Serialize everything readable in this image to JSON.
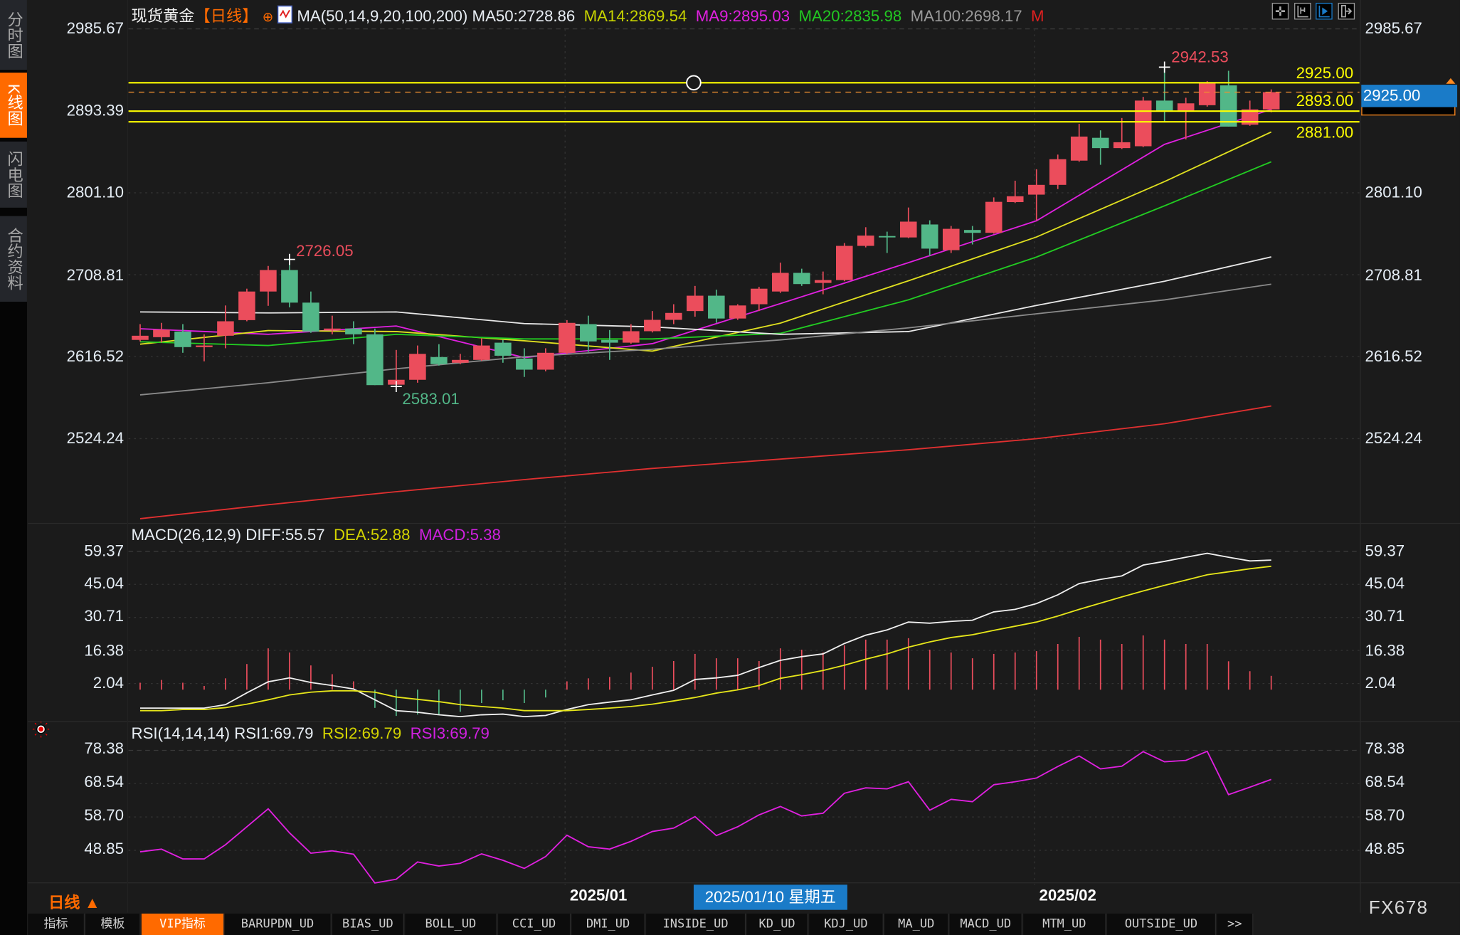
{
  "sidebar": {
    "tabs": [
      {
        "label": "分时图",
        "active": false
      },
      {
        "label": "K线图",
        "active": true
      },
      {
        "label": "闪电图",
        "active": false
      },
      {
        "label": "合约资料",
        "active": false
      }
    ]
  },
  "header": {
    "instrument": "现货黄金",
    "period": "【日线】",
    "ma_params": "MA(50,14,9,20,100,200)",
    "ma_values": [
      {
        "label": "MA50:2728.86",
        "color": "#e8eef4"
      },
      {
        "label": "MA14:2869.54",
        "color": "#c8d400"
      },
      {
        "label": "MA9:2895.03",
        "color": "#e020e0"
      },
      {
        "label": "MA20:2835.98",
        "color": "#22c822"
      },
      {
        "label": "MA100:2698.17",
        "color": "#9a9a9a"
      },
      {
        "label": "M",
        "color": "#e02020"
      }
    ],
    "toolbar_icons": [
      "crosshair-icon",
      "range-icon",
      "scroll-right-icon",
      "expand-right-icon"
    ]
  },
  "price_axis": {
    "ticks": [
      "2985.67",
      "2893.39",
      "2801.10",
      "2708.81",
      "2616.52",
      "2524.24"
    ]
  },
  "price_lines": [
    {
      "label": "2925.00",
      "value": 2925.0
    },
    {
      "label": "2893.00",
      "value": 2893.0
    },
    {
      "label": "2881.00",
      "value": 2881.0
    }
  ],
  "current_price": {
    "label": "2925.00"
  },
  "annotations": {
    "high": "2942.53",
    "mid_high": "2726.05",
    "low": "2583.01"
  },
  "macd": {
    "title": "MACD(26,12,9)",
    "diff": "DIFF:55.57",
    "dea": "DEA:52.88",
    "macd": "MACD:5.38",
    "ticks": [
      "59.37",
      "45.04",
      "30.71",
      "16.38",
      "2.04"
    ]
  },
  "rsi": {
    "title": "RSI(14,14,14)",
    "rsi1": "RSI1:69.79",
    "rsi2": "RSI2:69.79",
    "rsi3": "RSI3:69.79",
    "ticks": [
      "78.38",
      "68.54",
      "58.70",
      "48.85"
    ]
  },
  "x_axis": {
    "labels": [
      "2025/01",
      "2025/02"
    ],
    "crosshair_date": "2025/01/10 星期五"
  },
  "footer": {
    "period": "日线",
    "period_arrow": "▲",
    "brand": "FX678"
  },
  "indicator_bar": [
    "指标",
    "模板",
    "VIP指标",
    "BARUPDN_UD",
    "BIAS_UD",
    "BOLL_UD",
    "CCI_UD",
    "DMI_UD",
    "INSIDE_UD",
    "KD_UD",
    "KDJ_UD",
    "MA_UD",
    "MACD_UD",
    "MTM_UD",
    "OUTSIDE_UD",
    ">>"
  ],
  "colors": {
    "up": "#eb4d5c",
    "down": "#52b788",
    "accent": "#ff6a00",
    "highlight": "#1a7bc8",
    "price_line": "#ffff00"
  },
  "chart_data": [
    {
      "type": "candlestick",
      "title": "现货黄金 日线",
      "ylim": [
        2430,
        2985.67
      ],
      "x_tick_labels": [
        {
          "index": 20,
          "label": "2025/01"
        },
        {
          "index": 42,
          "label": "2025/02"
        }
      ],
      "candles": [
        [
          2635.4,
          2653.2,
          2633.7,
          2640.1
        ],
        [
          2638.5,
          2654.6,
          2632.3,
          2646.9
        ],
        [
          2644.8,
          2653.2,
          2620.9,
          2627.3
        ],
        [
          2627.3,
          2641.7,
          2611.3,
          2629.1
        ],
        [
          2640.1,
          2674.2,
          2626.0,
          2656.4
        ],
        [
          2657.7,
          2693.1,
          2656.4,
          2689.9
        ],
        [
          2689.9,
          2718.7,
          2673.8,
          2714.1
        ],
        [
          2714.1,
          2726.05,
          2672.1,
          2677.4
        ],
        [
          2677.4,
          2689.9,
          2643.4,
          2644.8
        ],
        [
          2646.5,
          2662.7,
          2641.7,
          2648.2
        ],
        [
          2648.2,
          2656.4,
          2630.6,
          2641.7
        ],
        [
          2641.7,
          2648.2,
          2584.5,
          2584.5
        ],
        [
          2585.0,
          2624.1,
          2583.01,
          2590.5
        ],
        [
          2590.5,
          2629.1,
          2587.2,
          2619.7
        ],
        [
          2616.1,
          2630.6,
          2606.5,
          2608.1
        ],
        [
          2609.7,
          2619.7,
          2608.1,
          2612.9
        ],
        [
          2612.9,
          2637.0,
          2612.0,
          2629.1
        ],
        [
          2632.3,
          2635.4,
          2609.7,
          2617.6
        ],
        [
          2614.4,
          2626.0,
          2593.7,
          2601.9
        ],
        [
          2601.9,
          2626.0,
          2600.1,
          2620.9
        ],
        [
          2620.9,
          2657.7,
          2619.5,
          2654.6
        ],
        [
          2653.2,
          2662.7,
          2621.8,
          2633.7
        ],
        [
          2635.4,
          2646.5,
          2612.9,
          2632.3
        ],
        [
          2632.3,
          2653.2,
          2631.2,
          2645.2
        ],
        [
          2645.2,
          2667.9,
          2643.8,
          2658.0
        ],
        [
          2658.0,
          2675.6,
          2653.2,
          2665.8
        ],
        [
          2667.9,
          2696.2,
          2661.6,
          2685.2
        ],
        [
          2685.2,
          2692.0,
          2654.7,
          2659.5
        ],
        [
          2659.5,
          2675.6,
          2658.0,
          2674.2
        ],
        [
          2675.6,
          2695.2,
          2667.9,
          2693.1
        ],
        [
          2689.9,
          2722.4,
          2688.3,
          2710.9
        ],
        [
          2710.9,
          2715.6,
          2696.2,
          2698.3
        ],
        [
          2699.6,
          2712.4,
          2686.8,
          2702.8
        ],
        [
          2702.8,
          2744.5,
          2701.5,
          2741.3
        ],
        [
          2741.3,
          2762.3,
          2739.6,
          2752.9
        ],
        [
          2752.4,
          2757.3,
          2733.3,
          2751.4
        ],
        [
          2750.8,
          2784.5,
          2750.0,
          2768.6
        ],
        [
          2765.4,
          2770.1,
          2730.1,
          2738.2
        ],
        [
          2736.5,
          2763.7,
          2733.3,
          2760.5
        ],
        [
          2759.2,
          2763.7,
          2742.9,
          2756.0
        ],
        [
          2756.0,
          2795.9,
          2755.0,
          2790.9
        ],
        [
          2790.6,
          2814.7,
          2789.6,
          2797.2
        ],
        [
          2799.0,
          2827.6,
          2770.0,
          2810.0
        ],
        [
          2810.0,
          2844.1,
          2805.3,
          2838.9
        ],
        [
          2837.3,
          2878.7,
          2836.0,
          2864.4
        ],
        [
          2863.0,
          2871.4,
          2832.6,
          2851.4
        ],
        [
          2851.4,
          2885.3,
          2850.4,
          2858.0
        ],
        [
          2853.5,
          2909.1,
          2852.5,
          2904.9
        ],
        [
          2904.9,
          2942.53,
          2880.8,
          2893.4
        ],
        [
          2893.4,
          2908.1,
          2861.3,
          2901.8
        ],
        [
          2899.7,
          2926.9,
          2898.1,
          2925.4
        ],
        [
          2922.1,
          2938.5,
          2875.6,
          2875.6
        ],
        [
          2877.7,
          2904.9,
          2876.5,
          2895.0
        ],
        [
          2895.0,
          2917.5,
          2891.7,
          2914.4
        ]
      ],
      "candle_fields": [
        "open",
        "high",
        "low",
        "close"
      ],
      "ma_sample_indices": [
        0,
        6,
        12,
        18,
        24,
        30,
        36,
        42,
        48,
        53
      ],
      "series": [
        {
          "name": "MA9",
          "color": "#e020e0",
          "values": [
            2648.0,
            2641.7,
            2651.1,
            2615.5,
            2631.2,
            2676.3,
            2722.4,
            2769.6,
            2855.6,
            2895.03
          ]
        },
        {
          "name": "MA14",
          "color": "#e0e020",
          "values": [
            2630.6,
            2645.9,
            2644.8,
            2634.4,
            2622.8,
            2654.3,
            2702.0,
            2751.3,
            2813.7,
            2869.54
          ]
        },
        {
          "name": "MA20",
          "color": "#22cc22",
          "values": [
            2633.3,
            2629.1,
            2641.7,
            2636.5,
            2636.5,
            2642.8,
            2680.5,
            2728.7,
            2786.4,
            2835.98
          ]
        },
        {
          "name": "MA50",
          "color": "#e8e8e8",
          "values": [
            2666.9,
            2665.8,
            2666.9,
            2653.8,
            2650.1,
            2641.7,
            2644.8,
            2674.2,
            2701.5,
            2728.86
          ]
        },
        {
          "name": "MA100",
          "color": "#8a8a8a",
          "values": [
            2573.5,
            2587.2,
            2602.9,
            2616.5,
            2624.9,
            2635.4,
            2649.0,
            2664.8,
            2680.5,
            2698.17
          ]
        },
        {
          "name": "MA200",
          "color": "#e03030",
          "values": [
            2434.1,
            2449.8,
            2464.5,
            2478.1,
            2490.7,
            2501.2,
            2511.7,
            2524.2,
            2541.0,
            2561.0
          ]
        }
      ]
    },
    {
      "type": "bar+line",
      "title": "MACD(26,12,9)",
      "ylim": [
        -14.4,
        59.37
      ],
      "histogram": [
        2.4,
        3.6,
        2.4,
        1.0,
        4.3,
        10.5,
        17.3,
        15.5,
        9.9,
        6.1,
        3.0,
        -8.5,
        -12.0,
        -11.4,
        -11.4,
        -10.2,
        -6.4,
        -5.2,
        -6.4,
        -4.0,
        3.0,
        4.3,
        4.9,
        6.8,
        9.3,
        11.8,
        14.9,
        13.0,
        13.0,
        11.8,
        17.3,
        16.7,
        15.5,
        18.6,
        21.1,
        21.1,
        21.7,
        16.7,
        15.5,
        13.0,
        14.9,
        15.5,
        16.1,
        19.2,
        22.3,
        21.1,
        19.2,
        22.9,
        21.1,
        19.2,
        19.2,
        11.7,
        7.4,
        5.38
      ],
      "series": [
        {
          "name": "DIFF",
          "color": "#f0f0f0",
          "values": [
            -8.6,
            -8.6,
            -8.6,
            -8.6,
            -7.1,
            -2.0,
            2.8,
            4.5,
            2.5,
            1.2,
            -0.3,
            -5.0,
            -9.7,
            -10.4,
            -11.5,
            -12.3,
            -11.5,
            -11.2,
            -12.3,
            -11.8,
            -9.2,
            -7.1,
            -6.0,
            -5.0,
            -2.9,
            -0.9,
            3.8,
            4.5,
            5.6,
            9.0,
            12.1,
            13.7,
            14.9,
            19.4,
            23.0,
            25.3,
            28.7,
            28.2,
            29.0,
            29.5,
            33.1,
            34.2,
            36.7,
            40.5,
            45.4,
            47.2,
            48.7,
            53.4,
            55.0,
            56.8,
            58.5,
            56.8,
            55.2,
            55.57
          ]
        },
        {
          "name": "DEA",
          "color": "#e6e61a",
          "values": [
            -9.7,
            -9.7,
            -9.2,
            -9.2,
            -8.4,
            -6.9,
            -5.0,
            -2.9,
            -1.7,
            -1.1,
            -1.1,
            -1.7,
            -3.8,
            -4.8,
            -5.8,
            -7.1,
            -7.9,
            -8.6,
            -9.7,
            -9.7,
            -9.7,
            -9.2,
            -8.6,
            -7.9,
            -6.9,
            -5.5,
            -4.0,
            -2.1,
            -0.7,
            1.2,
            4.3,
            5.9,
            7.7,
            10.0,
            12.6,
            14.9,
            17.8,
            20.1,
            22.0,
            23.2,
            25.1,
            26.9,
            28.7,
            31.3,
            34.2,
            36.9,
            39.6,
            42.2,
            44.6,
            46.9,
            49.2,
            50.5,
            51.8,
            52.88
          ]
        }
      ]
    },
    {
      "type": "line",
      "title": "RSI(14,14,14)",
      "ylim": [
        40,
        82
      ],
      "series": [
        {
          "name": "RSI",
          "color": "#e020e0",
          "values": [
            48.4,
            49.2,
            46.3,
            46.3,
            50.5,
            55.8,
            61.1,
            54.0,
            48.0,
            48.7,
            47.7,
            39.2,
            40.3,
            45.4,
            44.2,
            45.0,
            47.8,
            45.9,
            43.5,
            47.0,
            53.3,
            49.9,
            49.2,
            51.5,
            54.4,
            55.4,
            58.8,
            53.2,
            55.8,
            59.3,
            61.8,
            59.0,
            59.8,
            65.7,
            67.3,
            67.0,
            69.1,
            60.7,
            63.9,
            63.2,
            68.2,
            69.1,
            70.2,
            73.6,
            76.7,
            72.9,
            73.7,
            78.0,
            75.0,
            75.4,
            78.1,
            65.3,
            67.5,
            69.79
          ]
        }
      ]
    }
  ]
}
